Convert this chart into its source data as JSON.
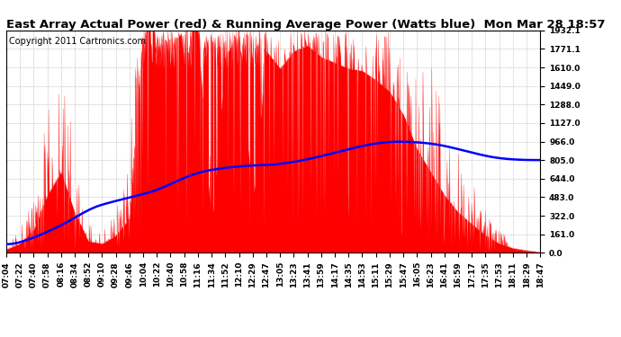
{
  "title": "East Array Actual Power (red) & Running Average Power (Watts blue)  Mon Mar 28 18:57",
  "copyright": "Copyright 2011 Cartronics.com",
  "ylabel_right_values": [
    0.0,
    161.0,
    322.0,
    483.0,
    644.0,
    805.0,
    966.0,
    1127.0,
    1288.0,
    1449.0,
    1610.0,
    1771.1,
    1932.1
  ],
  "ymax": 1932.1,
  "ymin": 0.0,
  "bar_color": "#FF0000",
  "avg_color": "#0000FF",
  "background_color": "#FFFFFF",
  "grid_color": "#AAAAAA",
  "title_fontsize": 9.5,
  "copyright_fontsize": 7,
  "tick_label_fontsize": 6.5,
  "x_labels": [
    "07:04",
    "07:22",
    "07:40",
    "07:58",
    "08:16",
    "08:34",
    "08:52",
    "09:10",
    "09:28",
    "09:46",
    "10:04",
    "10:22",
    "10:40",
    "10:58",
    "11:16",
    "11:34",
    "11:52",
    "12:10",
    "12:29",
    "12:47",
    "13:05",
    "13:23",
    "13:41",
    "13:59",
    "14:17",
    "14:35",
    "14:53",
    "15:11",
    "15:29",
    "15:47",
    "16:05",
    "16:23",
    "16:41",
    "16:59",
    "17:17",
    "17:35",
    "17:53",
    "18:11",
    "18:29",
    "18:47"
  ]
}
